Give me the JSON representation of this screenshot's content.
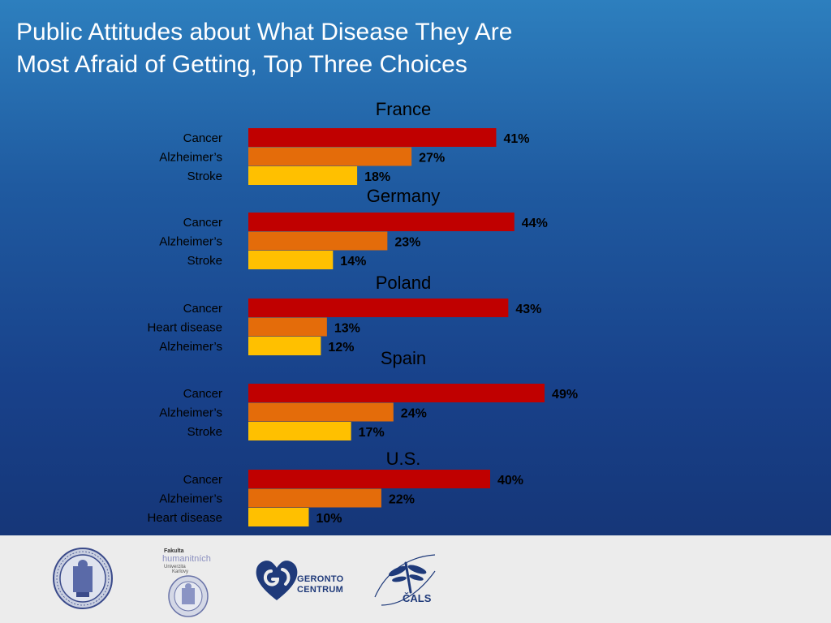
{
  "title_line1": "Public Attitudes about What Disease They Are",
  "title_line2": "Most Afraid of Getting, Top Three Choices",
  "chart_data": {
    "type": "bar",
    "orientation": "horizontal",
    "value_unit": "%",
    "colors": [
      "#c00000",
      "#e46c0a",
      "#ffc000"
    ],
    "panels": [
      {
        "country": "France",
        "labels": [
          "Cancer",
          "Alzheimer’s",
          "Stroke"
        ],
        "values": [
          41,
          27,
          18
        ]
      },
      {
        "country": "Germany",
        "labels": [
          "Cancer",
          "Alzheimer’s",
          "Stroke"
        ],
        "values": [
          44,
          23,
          14
        ]
      },
      {
        "country": "Poland",
        "labels": [
          "Cancer",
          "Heart disease",
          "Alzheimer’s"
        ],
        "values": [
          43,
          13,
          12
        ]
      },
      {
        "country": "Spain",
        "labels": [
          "Cancer",
          "Alzheimer’s",
          "Stroke"
        ],
        "values": [
          49,
          24,
          17
        ]
      },
      {
        "country": "U.S.",
        "labels": [
          "Cancer",
          "Alzheimer’s",
          "Heart disease"
        ],
        "values": [
          40,
          22,
          10
        ]
      }
    ]
  },
  "footer": {
    "logo_fhs_line1": "Fakulta",
    "logo_fhs_line2": "humanitních",
    "logo_fhs_line3": "Univerzita",
    "logo_fhs_line4": "Karlovy",
    "logo_geronto_line1": "GERONTO",
    "logo_geronto_line2": "CENTRUM",
    "logo_cals": "ČALS"
  }
}
